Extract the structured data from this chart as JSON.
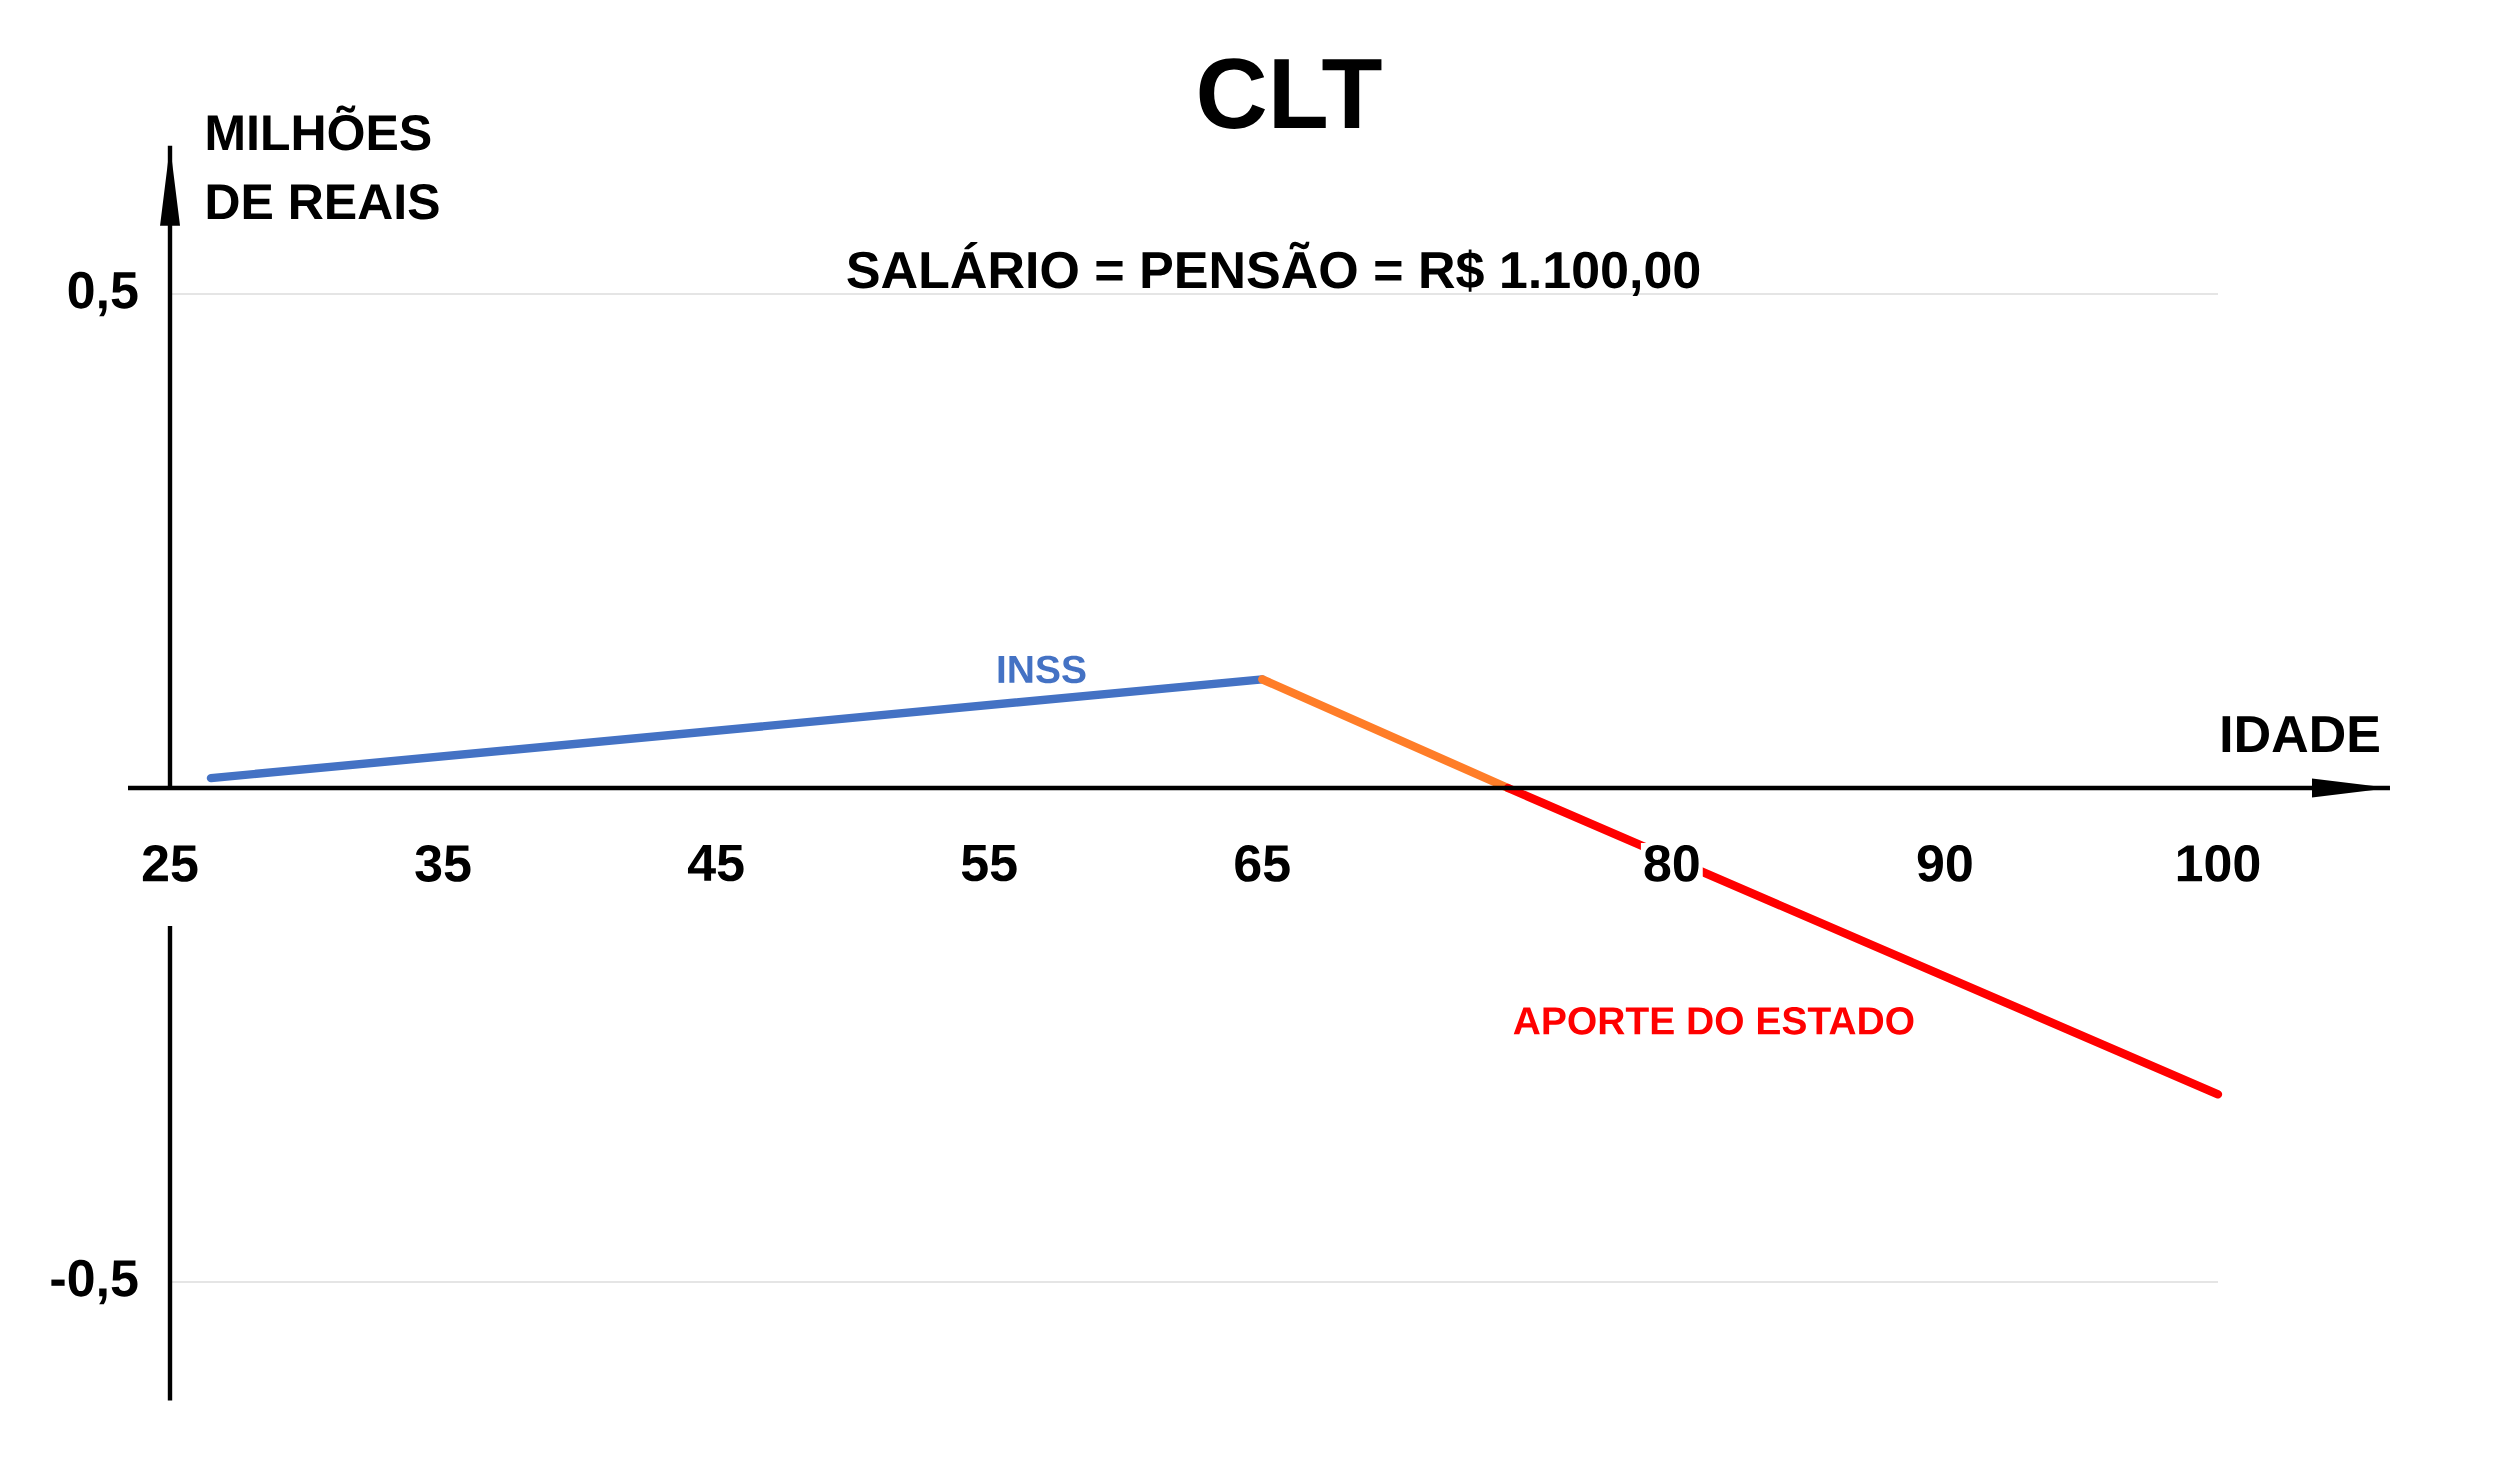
{
  "chart_data": {
    "type": "line",
    "title": "CLT",
    "subtitle": "SALÁRIO = PENSÃO = R$ 1.100,00",
    "xlabel": "IDADE",
    "ylabel": "MILHÕES DE REAIS",
    "xlim": [
      25,
      106.3
    ],
    "xticks": [
      25,
      35,
      45,
      55,
      65,
      80,
      90,
      100
    ],
    "ylim": [
      -0.62,
      0.65
    ],
    "yticks": [
      {
        "value": -0.5,
        "label": "-0,5"
      },
      {
        "value": 0.5,
        "label": "0,5"
      }
    ],
    "grid": "y",
    "series": [
      {
        "name": "INSS",
        "color": "#4472c4",
        "x": [
          26.5,
          65
        ],
        "values": [
          0.01,
          0.11
        ]
      },
      {
        "color": "#ff7d28",
        "x": [
          65,
          74
        ],
        "values": [
          0.11,
          0
        ]
      },
      {
        "name": "APORTE DO ESTADO",
        "color": "#ff0000",
        "x": [
          74,
          100
        ],
        "values": [
          0,
          -0.31
        ]
      }
    ]
  }
}
